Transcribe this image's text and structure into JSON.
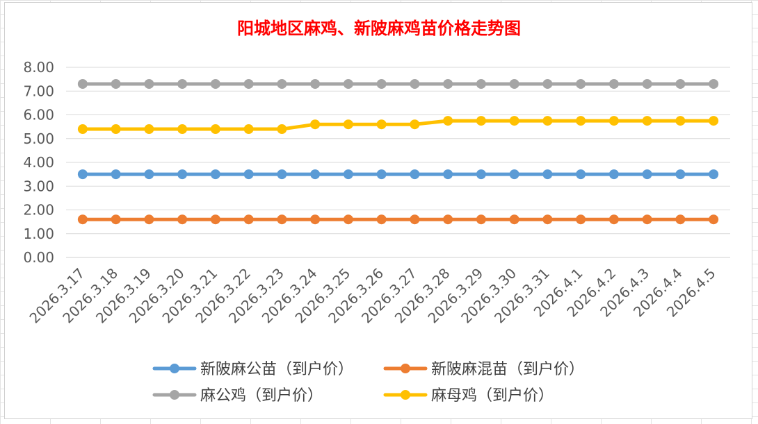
{
  "chart_data": {
    "type": "line",
    "title": "阳城地区麻鸡、新陂麻鸡苗价格走势图",
    "xlabel": "",
    "ylabel": "",
    "ylim": [
      0,
      8
    ],
    "yticks": [
      "0.00",
      "1.00",
      "2.00",
      "3.00",
      "4.00",
      "5.00",
      "6.00",
      "7.00",
      "8.00"
    ],
    "categories": [
      "2026.3.17",
      "2026.3.18",
      "2026.3.19",
      "2026.3.20",
      "2026.3.21",
      "2026.3.22",
      "2026.3.23",
      "2026.3.24",
      "2026.3.25",
      "2026.3.26",
      "2026.3.27",
      "2026.3.28",
      "2026.3.29",
      "2026.3.30",
      "2026.3.31",
      "2026.4.1",
      "2026.4.2",
      "2026.4.3",
      "2026.4.4",
      "2026.4.5"
    ],
    "grid": true,
    "legend_position": "bottom",
    "series": [
      {
        "name": "新陂麻公苗（到户价）",
        "color": "#5b9bd5",
        "values": [
          3.5,
          3.5,
          3.5,
          3.5,
          3.5,
          3.5,
          3.5,
          3.5,
          3.5,
          3.5,
          3.5,
          3.5,
          3.5,
          3.5,
          3.5,
          3.5,
          3.5,
          3.5,
          3.5,
          3.5
        ]
      },
      {
        "name": "新陂麻混苗（到户价）",
        "color": "#ed7d31",
        "values": [
          1.6,
          1.6,
          1.6,
          1.6,
          1.6,
          1.6,
          1.6,
          1.6,
          1.6,
          1.6,
          1.6,
          1.6,
          1.6,
          1.6,
          1.6,
          1.6,
          1.6,
          1.6,
          1.6,
          1.6
        ]
      },
      {
        "name": "麻公鸡（到户价）",
        "color": "#a5a5a5",
        "values": [
          7.3,
          7.3,
          7.3,
          7.3,
          7.3,
          7.3,
          7.3,
          7.3,
          7.3,
          7.3,
          7.3,
          7.3,
          7.3,
          7.3,
          7.3,
          7.3,
          7.3,
          7.3,
          7.3,
          7.3
        ]
      },
      {
        "name": "麻母鸡（到户价）",
        "color": "#ffc000",
        "values": [
          5.4,
          5.4,
          5.4,
          5.4,
          5.4,
          5.4,
          5.4,
          5.6,
          5.6,
          5.6,
          5.6,
          5.75,
          5.75,
          5.75,
          5.75,
          5.75,
          5.75,
          5.75,
          5.75,
          5.75
        ]
      }
    ]
  }
}
